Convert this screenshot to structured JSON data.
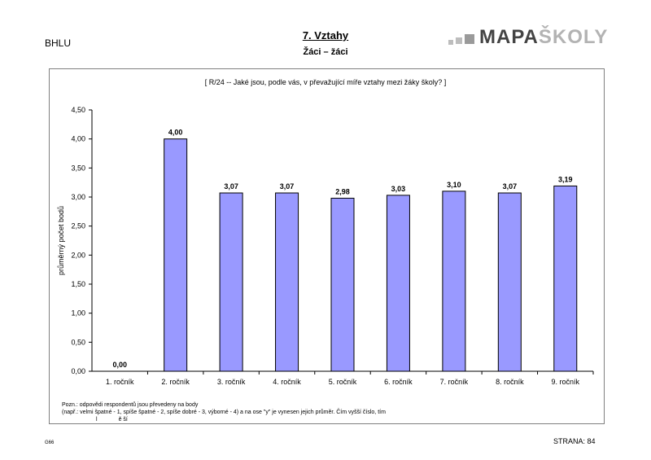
{
  "header": {
    "school": "BHLU",
    "title": "7. Vztahy",
    "subtitle": "Žáci – žáci",
    "logo": {
      "part1": "MAPA",
      "part2": "ŠKOLY"
    }
  },
  "chart_data": {
    "type": "bar",
    "title": "[ R/24 --  Jaké jsou, podle vás, v převažující míře vztahy mezi žáky školy? ]",
    "xlabel": "",
    "ylabel": "průměrný počet bodů",
    "ylim": [
      0,
      4.5
    ],
    "yticks": [
      "0,00",
      "0,50",
      "1,00",
      "1,50",
      "2,00",
      "2,50",
      "3,00",
      "3,50",
      "4,00",
      "4,50"
    ],
    "categories": [
      "1. ročník",
      "2. ročník",
      "3. ročník",
      "4. ročník",
      "5. ročník",
      "6. ročník",
      "7. ročník",
      "8. ročník",
      "9. ročník"
    ],
    "values": [
      0.0,
      4.0,
      3.07,
      3.07,
      2.98,
      3.03,
      3.1,
      3.07,
      3.19
    ],
    "data_labels": [
      "0,00",
      "4,00",
      "3,07",
      "3,07",
      "2,98",
      "3,03",
      "3,10",
      "3,07",
      "3,19"
    ],
    "bar_color": "#9999ff",
    "grid": false
  },
  "footer": {
    "note_line1": "Pozn.: odpovědi respondentů jsou převedeny na body",
    "note_line2": "(např.: velmi špatné - 1, spíše špatné - 2, spíše dobré - 3, výborné - 4) a na ose \"y\" je vynesen jejich průměr. Čím vyšší číslo, tím",
    "note_line3a": "l",
    "note_line3b": "ě ší",
    "code": "G66",
    "page": "STRANA:  84"
  }
}
